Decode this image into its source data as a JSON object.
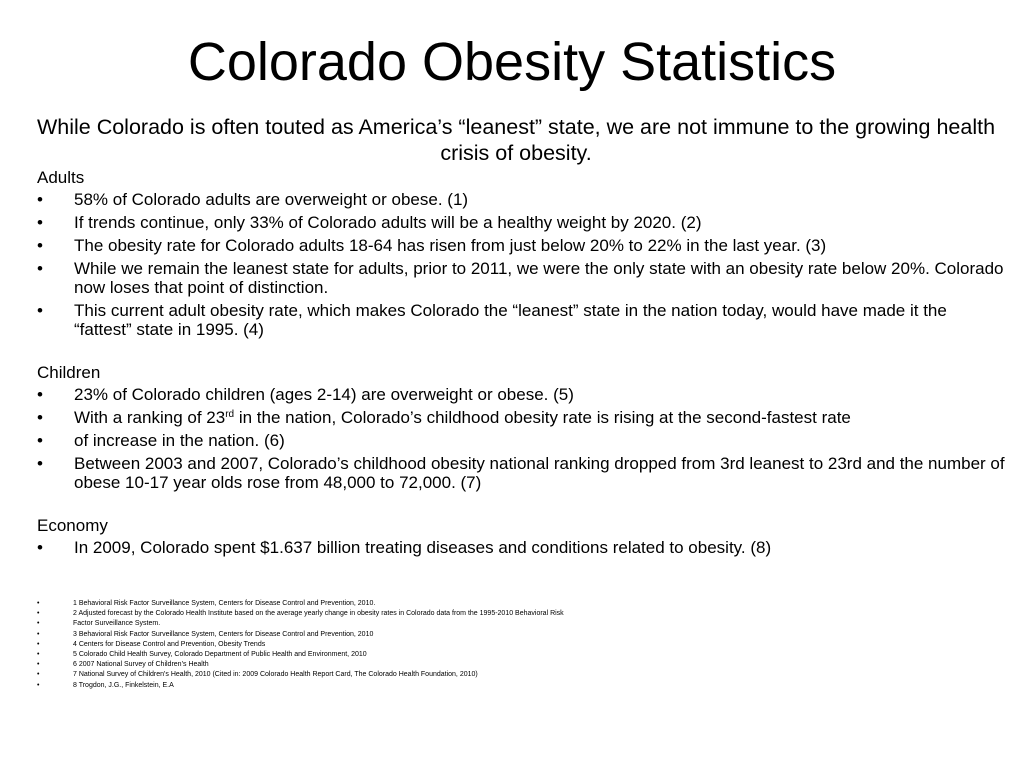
{
  "slide": {
    "title": "Colorado Obesity Statistics",
    "subtitle": "While Colorado is often touted as America’s “leanest” state, we are not immune to the growing health crisis of obesity.",
    "bullet_glyph": "•",
    "adults": {
      "heading": "Adults",
      "bullets": [
        "58% of Colorado adults are overweight or obese. (1)",
        "If trends continue, only 33% of Colorado adults will be a healthy weight by 2020. (2)",
        "The obesity rate for Colorado adults 18-64 has risen from just below 20% to 22% in the last year. (3)",
        "While we remain the leanest state for adults, prior to 2011, we were the only state with an obesity rate below 20%. Colorado now loses that point of distinction.",
        "This current adult obesity rate, which makes Colorado the “leanest” state in the nation today, would have made it the “fattest” state in 1995. (4)"
      ]
    },
    "children": {
      "heading": "Children",
      "bullets": [
        "23% of Colorado children (ages 2-14) are overweight or obese. (5)",
        {
          "before": "With a ranking of 23",
          "sup": "rd",
          "after": " in the nation, Colorado’s childhood obesity rate is rising at the second-fastest rate"
        },
        "of increase in the nation. (6)",
        "Between 2003 and 2007, Colorado’s childhood obesity national ranking dropped from 3rd leanest to 23rd and the number of obese 10-17 year olds rose from 48,000 to 72,000. (7)"
      ]
    },
    "economy": {
      "heading": "Economy",
      "bullets": [
        "In 2009, Colorado spent $1.637 billion treating diseases and conditions related to obesity. (8)"
      ]
    },
    "references": [
      "1 Behavioral Risk Factor Surveillance System, Centers for Disease Control and Prevention, 2010.",
      "2 Adjusted forecast by the Colorado Health Institute based on the average yearly change in obesity rates in Colorado data from the 1995-2010 Behavioral Risk",
      "Factor Surveillance System.",
      "3 Behavioral Risk Factor Surveillance System, Centers for Disease Control and Prevention, 2010",
      "4 Centers for Disease Control and Prevention, Obesity Trends",
      "5 Colorado Child Health Survey, Colorado Department of Public Health and Environment, 2010",
      "6 2007 National Survey of Children’s Health",
      "7 National Survey of Children's Health, 2010 (Cited in: 2009 Colorado Health Report Card, The Colorado Health Foundation, 2010)",
      "8 Trogdon, J.G., Finkelstein, E.A"
    ]
  }
}
